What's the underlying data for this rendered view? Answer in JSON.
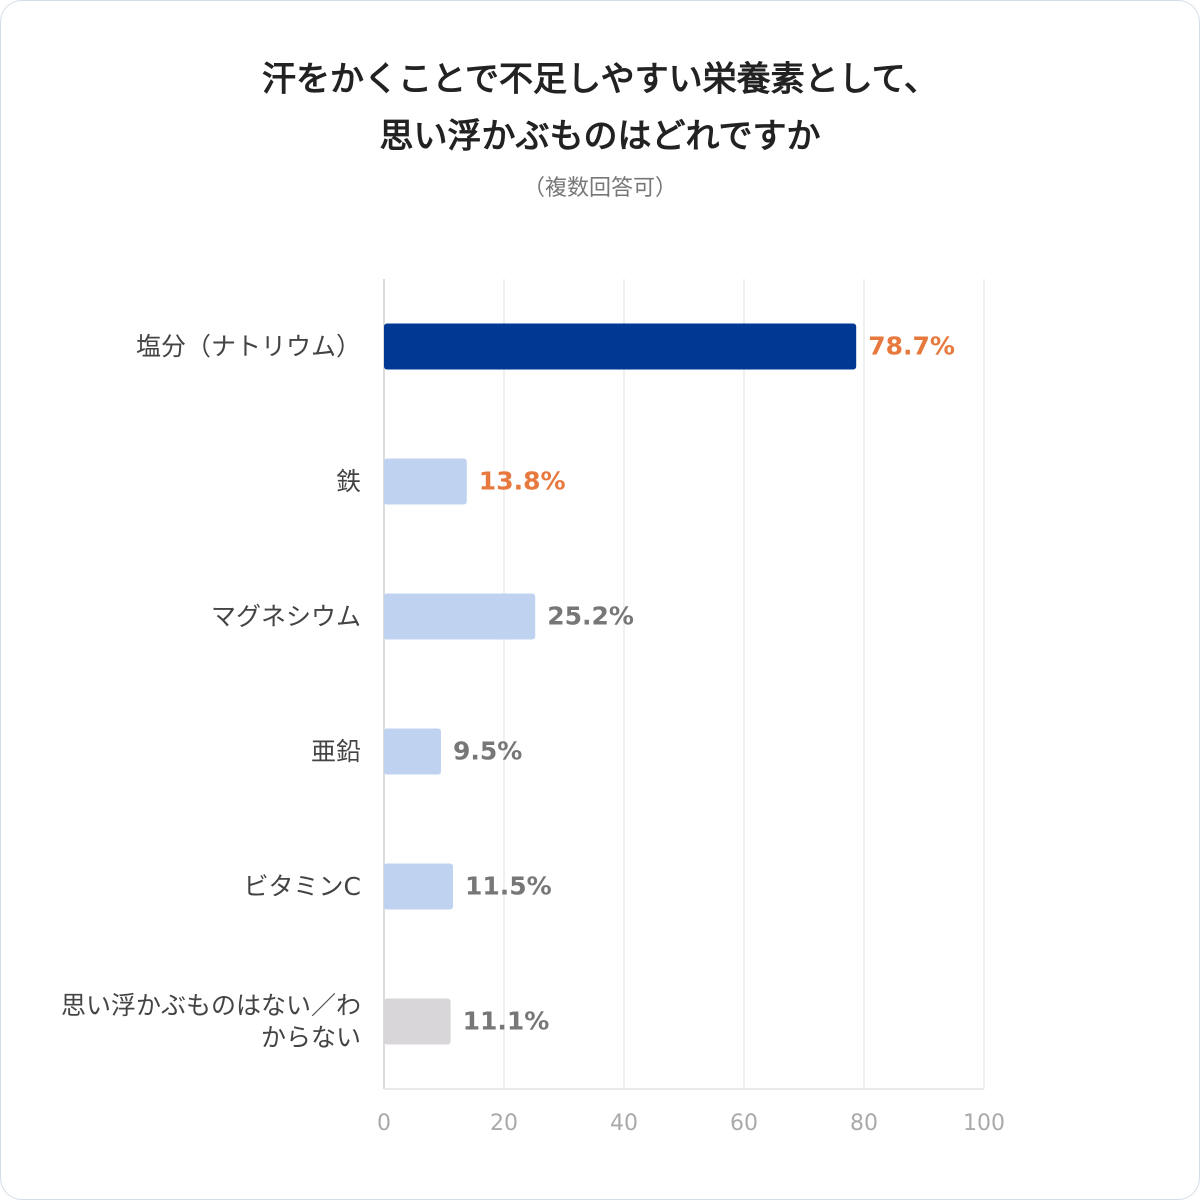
{
  "chart_data": {
    "type": "bar",
    "orientation": "horizontal",
    "title": [
      "汗をかくことで不足しやすい栄養素として、",
      "思い浮かぶものはどれですか"
    ],
    "subtitle": "（複数回答可）",
    "categories": [
      "塩分（ナトリウム）",
      "鉄",
      "マグネシウム",
      "亜鉛",
      "ビタミンC",
      "思い浮かぶものはない／わからない"
    ],
    "values": [
      78.7,
      13.8,
      25.2,
      9.5,
      11.5,
      11.1
    ],
    "value_labels": [
      "78.7%",
      "13.8%",
      "25.2%",
      "9.5%",
      "11.5%",
      "11.1%"
    ],
    "colors": [
      "#003894",
      "#bfd3f1",
      "#bfd3f1",
      "#bfd3f1",
      "#bfd3f1",
      "#d9d6d9"
    ],
    "label_colors": [
      "#e8793e",
      "#e8793e",
      "#777777",
      "#777777",
      "#777777",
      "#777777"
    ],
    "xlim": [
      0,
      100
    ],
    "xticks": [
      0,
      20,
      40,
      60,
      80,
      100
    ],
    "grid": true
  }
}
